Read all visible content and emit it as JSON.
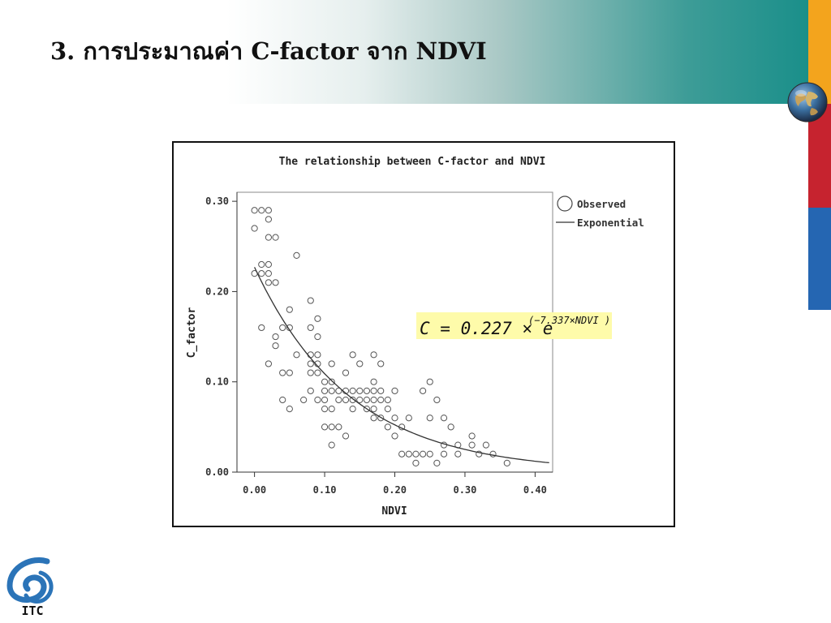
{
  "slide": {
    "title": "3. การประมาณค่า C-factor จาก NDVI",
    "colors": {
      "orange": "#f3a41d",
      "red": "#c6232f",
      "blue": "#2566b2",
      "teal": "#1a8f8a"
    },
    "logo_text": "ITC",
    "icons": [
      "globe-icon",
      "itc-logo-icon"
    ]
  },
  "chart_data": {
    "type": "scatter",
    "title": "The relationship between C-factor and NDVI",
    "xlabel": "NDVI",
    "ylabel": "C_factor",
    "xlim": [
      -0.025,
      0.425
    ],
    "ylim": [
      0,
      0.31
    ],
    "xticks": [
      "0.00",
      "0.10",
      "0.20",
      "0.30",
      "0.40"
    ],
    "yticks": [
      "0.00",
      "0.10",
      "0.20",
      "0.30"
    ],
    "grid": false,
    "legend": {
      "placement": "top-right outside",
      "entries": [
        "Observed",
        "Exponential"
      ]
    },
    "equation": {
      "lhs": "C = 0.227 × e",
      "exponent": "(−7.337×NDVI )"
    },
    "fit": {
      "a": 0.227,
      "b": -7.337
    },
    "series": [
      {
        "name": "Observed",
        "kind": "scatter",
        "points": [
          [
            0.0,
            0.29
          ],
          [
            0.01,
            0.29
          ],
          [
            0.02,
            0.29
          ],
          [
            0.0,
            0.27
          ],
          [
            0.02,
            0.28
          ],
          [
            0.02,
            0.26
          ],
          [
            0.03,
            0.26
          ],
          [
            0.0,
            0.22
          ],
          [
            0.01,
            0.23
          ],
          [
            0.02,
            0.23
          ],
          [
            0.01,
            0.22
          ],
          [
            0.02,
            0.22
          ],
          [
            0.02,
            0.21
          ],
          [
            0.03,
            0.21
          ],
          [
            0.06,
            0.24
          ],
          [
            0.05,
            0.18
          ],
          [
            0.01,
            0.16
          ],
          [
            0.04,
            0.16
          ],
          [
            0.05,
            0.16
          ],
          [
            0.03,
            0.15
          ],
          [
            0.03,
            0.14
          ],
          [
            0.02,
            0.12
          ],
          [
            0.04,
            0.11
          ],
          [
            0.05,
            0.11
          ],
          [
            0.04,
            0.08
          ],
          [
            0.05,
            0.07
          ],
          [
            0.06,
            0.13
          ],
          [
            0.07,
            0.08
          ],
          [
            0.08,
            0.19
          ],
          [
            0.08,
            0.16
          ],
          [
            0.09,
            0.17
          ],
          [
            0.09,
            0.15
          ],
          [
            0.08,
            0.13
          ],
          [
            0.09,
            0.13
          ],
          [
            0.08,
            0.12
          ],
          [
            0.09,
            0.12
          ],
          [
            0.08,
            0.11
          ],
          [
            0.09,
            0.11
          ],
          [
            0.1,
            0.1
          ],
          [
            0.11,
            0.1
          ],
          [
            0.11,
            0.12
          ],
          [
            0.1,
            0.09
          ],
          [
            0.11,
            0.09
          ],
          [
            0.12,
            0.09
          ],
          [
            0.13,
            0.09
          ],
          [
            0.08,
            0.09
          ],
          [
            0.09,
            0.08
          ],
          [
            0.1,
            0.08
          ],
          [
            0.12,
            0.08
          ],
          [
            0.13,
            0.08
          ],
          [
            0.14,
            0.08
          ],
          [
            0.15,
            0.08
          ],
          [
            0.1,
            0.07
          ],
          [
            0.11,
            0.07
          ],
          [
            0.14,
            0.07
          ],
          [
            0.1,
            0.05
          ],
          [
            0.11,
            0.05
          ],
          [
            0.12,
            0.05
          ],
          [
            0.13,
            0.04
          ],
          [
            0.11,
            0.03
          ],
          [
            0.14,
            0.13
          ],
          [
            0.15,
            0.12
          ],
          [
            0.17,
            0.13
          ],
          [
            0.18,
            0.12
          ],
          [
            0.13,
            0.11
          ],
          [
            0.17,
            0.1
          ],
          [
            0.14,
            0.09
          ],
          [
            0.15,
            0.09
          ],
          [
            0.16,
            0.09
          ],
          [
            0.17,
            0.09
          ],
          [
            0.18,
            0.09
          ],
          [
            0.2,
            0.09
          ],
          [
            0.16,
            0.08
          ],
          [
            0.17,
            0.08
          ],
          [
            0.18,
            0.08
          ],
          [
            0.19,
            0.08
          ],
          [
            0.16,
            0.07
          ],
          [
            0.17,
            0.07
          ],
          [
            0.19,
            0.07
          ],
          [
            0.17,
            0.06
          ],
          [
            0.18,
            0.06
          ],
          [
            0.2,
            0.06
          ],
          [
            0.19,
            0.05
          ],
          [
            0.21,
            0.05
          ],
          [
            0.2,
            0.04
          ],
          [
            0.21,
            0.02
          ],
          [
            0.22,
            0.02
          ],
          [
            0.23,
            0.02
          ],
          [
            0.24,
            0.02
          ],
          [
            0.25,
            0.02
          ],
          [
            0.22,
            0.06
          ],
          [
            0.24,
            0.09
          ],
          [
            0.25,
            0.1
          ],
          [
            0.26,
            0.08
          ],
          [
            0.25,
            0.06
          ],
          [
            0.27,
            0.06
          ],
          [
            0.28,
            0.05
          ],
          [
            0.23,
            0.01
          ],
          [
            0.26,
            0.01
          ],
          [
            0.27,
            0.03
          ],
          [
            0.27,
            0.02
          ],
          [
            0.29,
            0.03
          ],
          [
            0.29,
            0.02
          ],
          [
            0.31,
            0.04
          ],
          [
            0.31,
            0.03
          ],
          [
            0.32,
            0.02
          ],
          [
            0.33,
            0.03
          ],
          [
            0.34,
            0.02
          ],
          [
            0.36,
            0.01
          ]
        ]
      },
      {
        "name": "Exponential",
        "kind": "line",
        "x_range": [
          0,
          0.42
        ]
      }
    ]
  }
}
